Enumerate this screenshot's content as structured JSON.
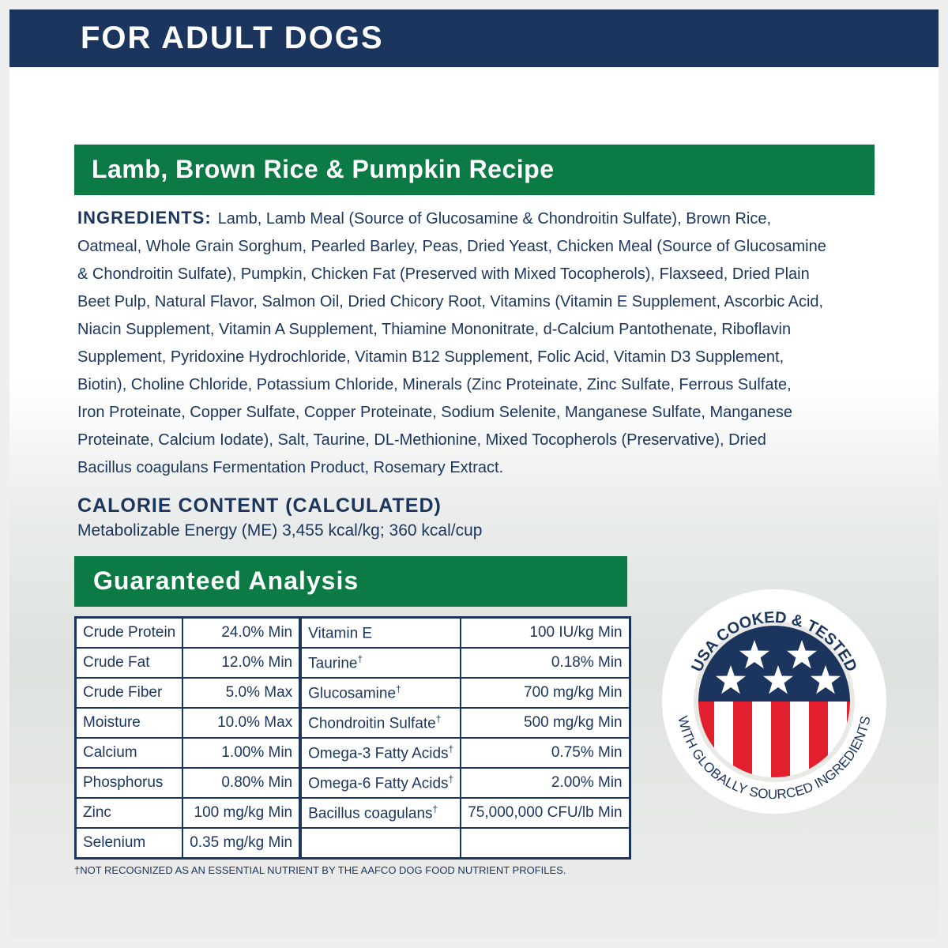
{
  "banner": {
    "title": "FOR ADULT DOGS"
  },
  "recipe": {
    "title": "Lamb, Brown Rice & Pumpkin Recipe"
  },
  "ingredients": {
    "label": "INGREDIENTS:",
    "lines": [
      "Lamb, Lamb Meal (Source of Glucosamine & Chondroitin Sulfate), Brown Rice,",
      "Oatmeal, Whole Grain Sorghum, Pearled Barley, Peas, Dried Yeast, Chicken Meal (Source of Glucosamine",
      "& Chondroitin Sulfate), Pumpkin, Chicken Fat (Preserved with Mixed Tocopherols), Flaxseed, Dried Plain",
      "Beet Pulp, Natural Flavor, Salmon Oil, Dried Chicory Root, Vitamins (Vitamin E Supplement, Ascorbic Acid,",
      "Niacin Supplement, Vitamin A Supplement, Thiamine Mononitrate, d-Calcium Pantothenate, Riboflavin",
      "Supplement, Pyridoxine Hydrochloride, Vitamin B12 Supplement, Folic Acid, Vitamin D3 Supplement,",
      "Biotin), Choline Chloride, Potassium Chloride, Minerals (Zinc Proteinate, Zinc Sulfate, Ferrous Sulfate,",
      "Iron Proteinate, Copper Sulfate, Copper Proteinate, Sodium Selenite, Manganese Sulfate, Manganese",
      "Proteinate, Calcium Iodate), Salt, Taurine, DL-Methionine, Mixed Tocopherols (Preservative), Dried",
      "Bacillus coagulans Fermentation Product, Rosemary Extract."
    ]
  },
  "calorie": {
    "heading": "CALORIE CONTENT (CALCULATED)",
    "text": "Metabolizable Energy (ME) 3,455 kcal/kg; 360 kcal/cup"
  },
  "analysis": {
    "title": "Guaranteed Analysis",
    "rows": [
      {
        "n1": "Crude Protein",
        "v1": "24.0% Min",
        "n2": "Vitamin E",
        "d2": "",
        "v2": "100 IU/kg Min"
      },
      {
        "n1": "Crude Fat",
        "v1": "12.0% Min",
        "n2": "Taurine",
        "d2": "†",
        "v2": "0.18% Min"
      },
      {
        "n1": "Crude Fiber",
        "v1": "5.0% Max",
        "n2": "Glucosamine",
        "d2": "†",
        "v2": "700 mg/kg Min"
      },
      {
        "n1": "Moisture",
        "v1": "10.0% Max",
        "n2": "Chondroitin Sulfate",
        "d2": "†",
        "v2": "500 mg/kg Min"
      },
      {
        "n1": "Calcium",
        "v1": "1.00% Min",
        "n2": "Omega-3 Fatty Acids",
        "d2": "†",
        "v2": "0.75% Min"
      },
      {
        "n1": "Phosphorus",
        "v1": "0.80% Min",
        "n2": "Omega-6 Fatty Acids",
        "d2": "†",
        "v2": "2.00% Min"
      },
      {
        "n1": "Zinc",
        "v1": "100 mg/kg Min",
        "n2": "Bacillus coagulans",
        "d2": "†",
        "v2": "75,000,000 CFU/lb Min"
      },
      {
        "n1": "Selenium",
        "v1": "0.35 mg/kg Min",
        "n2": "",
        "d2": "",
        "v2": ""
      }
    ],
    "footnote": "†NOT RECOGNIZED AS AN ESSENTIAL NUTRIENT BY THE AAFCO DOG FOOD NUTRIENT PROFILES."
  },
  "badge": {
    "top_text": "USA COOKED & TESTED",
    "bottom_text": "WITH GLOBALLY SOURCED INGREDIENTS",
    "icon": "usa-flag-icon"
  },
  "colors": {
    "navy": "#1b355f",
    "green": "#0b7a45",
    "red": "#e31e2d"
  }
}
